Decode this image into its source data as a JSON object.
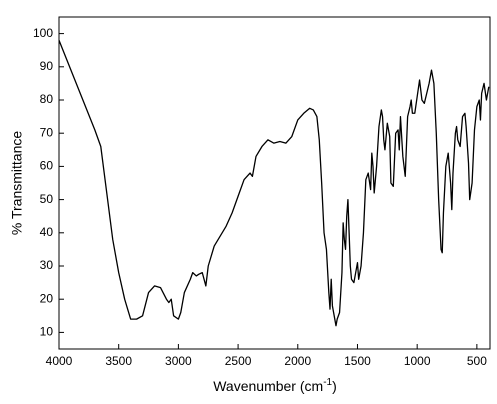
{
  "chart_data": {
    "type": "line",
    "xlabel": [
      "Wavenumber (cm",
      "-1",
      ")"
    ],
    "ylabel": "% Transmittance",
    "xlim": [
      4000,
      390
    ],
    "ylim": [
      5,
      105
    ],
    "xticks": [
      4000,
      3500,
      3000,
      2500,
      2000,
      1500,
      1000,
      500
    ],
    "yticks": [
      10,
      20,
      30,
      40,
      50,
      60,
      70,
      80,
      90,
      100
    ],
    "x": [
      4000,
      3900,
      3800,
      3700,
      3650,
      3600,
      3550,
      3500,
      3450,
      3400,
      3350,
      3300,
      3250,
      3200,
      3150,
      3100,
      3080,
      3060,
      3040,
      3000,
      2980,
      2950,
      2900,
      2880,
      2850,
      2830,
      2800,
      2770,
      2750,
      2700,
      2600,
      2550,
      2500,
      2450,
      2400,
      2380,
      2350,
      2300,
      2250,
      2200,
      2150,
      2100,
      2050,
      2000,
      1950,
      1900,
      1870,
      1840,
      1820,
      1800,
      1780,
      1760,
      1740,
      1730,
      1720,
      1710,
      1700,
      1680,
      1670,
      1650,
      1630,
      1620,
      1610,
      1600,
      1590,
      1580,
      1570,
      1560,
      1550,
      1530,
      1510,
      1500,
      1490,
      1470,
      1450,
      1430,
      1410,
      1390,
      1380,
      1370,
      1360,
      1340,
      1320,
      1300,
      1290,
      1280,
      1270,
      1250,
      1230,
      1220,
      1200,
      1180,
      1160,
      1150,
      1140,
      1120,
      1100,
      1080,
      1060,
      1050,
      1040,
      1020,
      1000,
      980,
      960,
      940,
      920,
      900,
      880,
      860,
      840,
      820,
      800,
      790,
      780,
      760,
      740,
      720,
      710,
      700,
      680,
      670,
      660,
      640,
      620,
      600,
      590,
      570,
      560,
      540,
      520,
      500,
      480,
      470,
      460,
      440,
      420,
      400
    ],
    "series": [
      {
        "color": "#000000",
        "values": [
          98,
          89,
          80,
          71,
          66,
          52,
          38,
          28,
          20,
          14,
          14,
          15,
          22,
          24,
          23.5,
          20,
          19,
          20,
          15,
          14,
          16,
          22,
          26,
          28,
          27,
          27.5,
          28,
          24,
          30,
          36,
          42,
          46,
          51,
          56,
          58,
          57,
          63,
          66,
          68,
          67,
          67.5,
          67,
          69,
          74,
          76,
          77.5,
          77,
          75,
          68,
          55,
          40,
          35,
          22,
          17,
          26,
          18,
          16,
          12,
          14,
          16,
          28,
          43,
          38,
          35,
          45,
          50,
          40,
          30,
          26,
          25,
          29,
          31,
          26,
          30,
          40,
          56,
          58,
          53,
          64,
          60,
          52,
          60,
          72,
          77,
          75,
          68,
          65,
          73,
          69,
          55,
          54,
          70,
          71,
          65,
          75,
          63,
          57,
          75,
          78,
          80,
          76,
          76,
          81,
          86,
          80,
          79,
          82,
          85,
          89,
          85,
          70,
          50,
          35,
          34,
          46,
          60,
          64,
          55,
          47,
          58,
          70,
          72,
          68,
          66,
          75,
          76,
          72,
          61,
          50,
          55,
          71,
          78,
          80,
          74,
          82,
          85,
          80,
          84
        ]
      }
    ]
  }
}
